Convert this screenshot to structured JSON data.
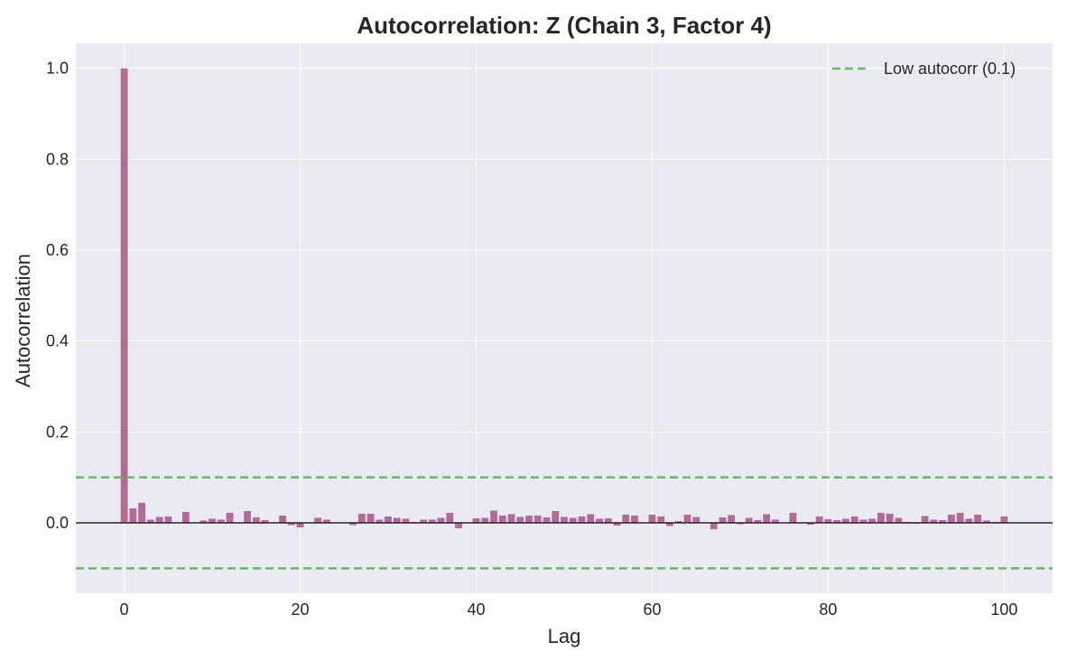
{
  "chart_data": {
    "type": "bar",
    "title": "Autocorrelation: Z (Chain 3, Factor 4)",
    "xlabel": "Lag",
    "ylabel": "Autocorrelation",
    "xlim": [
      -5.5,
      105.5
    ],
    "ylim": [
      -0.155,
      1.055
    ],
    "xticks": [
      0,
      20,
      40,
      60,
      80,
      100
    ],
    "xtick_labels": [
      "0",
      "20",
      "40",
      "60",
      "80",
      "100"
    ],
    "yticks": [
      0.0,
      0.2,
      0.4,
      0.6,
      0.8,
      1.0
    ],
    "ytick_labels": [
      "0.0",
      "0.2",
      "0.4",
      "0.6",
      "0.8",
      "1.0"
    ],
    "grid": true,
    "legend": {
      "position": "top-right",
      "entries": [
        {
          "label": "Low autocorr (0.1)",
          "style": "dashed",
          "color": "#6ab46e"
        }
      ]
    },
    "threshold_lines": [
      0.1,
      -0.1
    ],
    "zero_line": 0.0,
    "colors": {
      "bar": "#b36b96",
      "threshold": "#6ab46e",
      "plot_bg": "#eaeaf2",
      "zero_line": "#262626",
      "grid": "#ffffff"
    },
    "x": [
      0,
      1,
      2,
      3,
      4,
      5,
      6,
      7,
      8,
      9,
      10,
      11,
      12,
      13,
      14,
      15,
      16,
      17,
      18,
      19,
      20,
      21,
      22,
      23,
      24,
      25,
      26,
      27,
      28,
      29,
      30,
      31,
      32,
      33,
      34,
      35,
      36,
      37,
      38,
      39,
      40,
      41,
      42,
      43,
      44,
      45,
      46,
      47,
      48,
      49,
      50,
      51,
      52,
      53,
      54,
      55,
      56,
      57,
      58,
      59,
      60,
      61,
      62,
      63,
      64,
      65,
      66,
      67,
      68,
      69,
      70,
      71,
      72,
      73,
      74,
      75,
      76,
      77,
      78,
      79,
      80,
      81,
      82,
      83,
      84,
      85,
      86,
      87,
      88,
      89,
      90,
      91,
      92,
      93,
      94,
      95,
      96,
      97,
      98,
      99,
      100
    ],
    "values": [
      1.0,
      0.032,
      0.044,
      0.007,
      0.013,
      0.014,
      0.001,
      0.024,
      0.0,
      0.005,
      0.009,
      0.007,
      0.022,
      0.001,
      0.026,
      0.012,
      0.006,
      -0.001,
      0.016,
      -0.005,
      -0.01,
      0.0,
      0.011,
      0.007,
      0.0,
      0.0,
      -0.005,
      0.02,
      0.02,
      0.007,
      0.014,
      0.011,
      0.009,
      0.002,
      0.007,
      0.007,
      0.011,
      0.022,
      -0.012,
      0.001,
      0.01,
      0.011,
      0.027,
      0.016,
      0.019,
      0.013,
      0.016,
      0.016,
      0.012,
      0.026,
      0.013,
      0.011,
      0.014,
      0.019,
      0.009,
      0.01,
      -0.006,
      0.018,
      0.016,
      -0.001,
      0.018,
      0.014,
      -0.007,
      0.004,
      0.018,
      0.013,
      0.0,
      -0.014,
      0.012,
      0.017,
      -0.003,
      0.011,
      0.006,
      0.019,
      0.007,
      0.0,
      0.022,
      0.001,
      -0.004,
      0.014,
      0.008,
      0.006,
      0.009,
      0.014,
      0.007,
      0.009,
      0.022,
      0.02,
      0.011,
      0.002,
      -0.002,
      0.015,
      0.007,
      0.006,
      0.018,
      0.022,
      0.009,
      0.018,
      0.005,
      0.002,
      0.014
    ]
  }
}
